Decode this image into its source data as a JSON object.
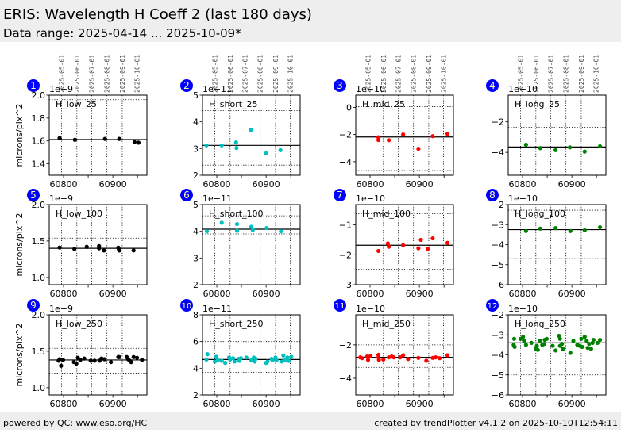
{
  "header": {
    "title": "ERIS: Wavelength H Coeff 2 (last 180 days)",
    "subtitle": "Data range: 2025-04-14 ... 2025-10-09*"
  },
  "footer": {
    "left": "powered by QC: www.eso.org/HC",
    "right": "created by trendPlotter v4.1.2 on 2025-10-10T12:54:11"
  },
  "colors": {
    "low": "#000000",
    "short": "#00bfbf",
    "mid": "#ff0000",
    "long": "#008000",
    "badge": "#0000ff",
    "band": "#eeeeee"
  },
  "chart_data": {
    "type": "scatter",
    "ylabel": "microns/pix^2",
    "xlim": [
      60771,
      60969
    ],
    "xticks": [
      60800,
      60900
    ],
    "xticks_minor": [
      60850,
      60950
    ],
    "date_ticks": [
      {
        "label": "2025-05-01",
        "mjd": 60796
      },
      {
        "label": "2025-06-01",
        "mjd": 60827
      },
      {
        "label": "2025-07-01",
        "mjd": 60857
      },
      {
        "label": "2025-08-01",
        "mjd": 60888
      },
      {
        "label": "2025-09-01",
        "mjd": 60919
      },
      {
        "label": "2025-10-01",
        "mjd": 60949
      }
    ],
    "grid": true,
    "panels": [
      {
        "num": "1",
        "name": "H_low_25",
        "color": "low",
        "exponent": "1e−9",
        "ylim": [
          1.3,
          2.0
        ],
        "yticks": [
          1.4,
          1.6,
          1.8,
          2.0
        ],
        "ytick_labels": [
          "1.4",
          "1.6",
          "1.8",
          "2.0"
        ],
        "median": 1.612,
        "limits": [
          1.96
        ],
        "points": [
          [
            60792,
            1.625
          ],
          [
            60823,
            1.61
          ],
          [
            60884,
            1.618
          ],
          [
            60913,
            1.618
          ],
          [
            60944,
            1.59
          ],
          [
            60952,
            1.585
          ]
        ]
      },
      {
        "num": "2",
        "name": "H_short_25",
        "color": "short",
        "exponent": "1e−11",
        "ylim": [
          2,
          5
        ],
        "yticks": [
          2,
          3,
          4,
          5
        ],
        "ytick_labels": [
          "2",
          "3",
          "4",
          "5"
        ],
        "median": 3.12,
        "limits": [
          4.42,
          2.38
        ],
        "points": [
          [
            60779,
            3.12
          ],
          [
            60810,
            3.12
          ],
          [
            60839,
            3.23
          ],
          [
            60840,
            3.02
          ],
          [
            60869,
            3.7
          ],
          [
            60900,
            2.82
          ],
          [
            60929,
            2.94
          ]
        ]
      },
      {
        "num": "3",
        "name": "H_mid_25",
        "color": "mid",
        "exponent": "1e−10",
        "ylim": [
          -5,
          0.9
        ],
        "yticks": [
          -4,
          -2,
          0
        ],
        "ytick_labels": [
          "−4",
          "−2",
          "0"
        ],
        "median": -2.18,
        "limits": [
          0.05,
          -4.65
        ],
        "points": [
          [
            60817,
            -2.2
          ],
          [
            60817,
            -2.4
          ],
          [
            60838,
            -2.42
          ],
          [
            60867,
            -2.0
          ],
          [
            60898,
            -3.05
          ],
          [
            60927,
            -2.12
          ],
          [
            60957,
            -1.95
          ]
        ]
      },
      {
        "num": "4",
        "name": "H_long_25",
        "color": "long",
        "exponent": "1e−10",
        "ylim": [
          -5.5,
          -0.25
        ],
        "yticks": [
          -4,
          -2
        ],
        "ytick_labels": [
          "−4",
          "−2"
        ],
        "median": -3.65,
        "limits": [
          -2.35,
          -4.95
        ],
        "points": [
          [
            60807,
            -3.5
          ],
          [
            60836,
            -3.72
          ],
          [
            60867,
            -3.85
          ],
          [
            60896,
            -3.67
          ],
          [
            60926,
            -3.95
          ],
          [
            60957,
            -3.6
          ]
        ]
      },
      {
        "num": "5",
        "name": "H_low_100",
        "color": "low",
        "exponent": "1e−9",
        "ylim": [
          0.9,
          2.0
        ],
        "yticks": [
          1.0,
          1.5,
          2.0
        ],
        "ytick_labels": [
          "1.0",
          "1.5",
          "2.0"
        ],
        "median": 1.4,
        "limits": [
          1.54,
          1.21
        ],
        "points": [
          [
            60792,
            1.41
          ],
          [
            60822,
            1.39
          ],
          [
            60847,
            1.42
          ],
          [
            60872,
            1.43
          ],
          [
            60872,
            1.4
          ],
          [
            60882,
            1.37
          ],
          [
            60911,
            1.41
          ],
          [
            60912,
            1.39
          ],
          [
            60913,
            1.37
          ],
          [
            60942,
            1.37
          ]
        ]
      },
      {
        "num": "6",
        "name": "H_short_100",
        "color": "short",
        "exponent": "1e−11",
        "ylim": [
          2,
          5
        ],
        "yticks": [
          2,
          3,
          4,
          5
        ],
        "ytick_labels": [
          "2",
          "3",
          "4",
          "5"
        ],
        "median": 4.08,
        "limits": [
          4.58,
          3.9
        ],
        "points": [
          [
            60780,
            4.0
          ],
          [
            60810,
            4.32
          ],
          [
            60841,
            4.27
          ],
          [
            60841,
            4.02
          ],
          [
            60870,
            4.17
          ],
          [
            60873,
            4.05
          ],
          [
            60901,
            4.12
          ],
          [
            60930,
            4.0
          ]
        ]
      },
      {
        "num": "7",
        "name": "H_mid_100",
        "color": "mid",
        "exponent": "1e−10",
        "ylim": [
          -3,
          -0.32
        ],
        "yticks": [
          -3,
          -2,
          -1
        ],
        "ytick_labels": [
          "−3",
          "−2",
          "−1"
        ],
        "median": -1.68,
        "limits": [
          -0.62,
          -2.48
        ],
        "points": [
          [
            60817,
            -1.87
          ],
          [
            60836,
            -1.62
          ],
          [
            60838,
            -1.73
          ],
          [
            60867,
            -1.68
          ],
          [
            60898,
            -1.78
          ],
          [
            60903,
            -1.5
          ],
          [
            60917,
            -1.8
          ],
          [
            60927,
            -1.45
          ],
          [
            60957,
            -1.6
          ]
        ]
      },
      {
        "num": "8",
        "name": "H_long_100",
        "color": "long",
        "exponent": "1e−10",
        "ylim": [
          -6,
          -2
        ],
        "yticks": [
          -6,
          -5,
          -4,
          -3,
          -2
        ],
        "ytick_labels": [
          "−6",
          "−5",
          "−4",
          "−3",
          "−2"
        ],
        "median": -3.25,
        "limits": [
          -2.28,
          -4.7
        ],
        "points": [
          [
            60807,
            -3.32
          ],
          [
            60836,
            -3.2
          ],
          [
            60867,
            -3.17
          ],
          [
            60897,
            -3.32
          ],
          [
            60926,
            -3.28
          ],
          [
            60957,
            -3.13
          ]
        ]
      },
      {
        "num": "9",
        "name": "H_low_250",
        "color": "low",
        "exponent": "1e−9",
        "ylim": [
          0.9,
          2.0
        ],
        "yticks": [
          1.0,
          1.5,
          2.0
        ],
        "ytick_labels": [
          "1.0",
          "1.5",
          "2.0"
        ],
        "median": 1.38,
        "limits": [
          1.54,
          1.2
        ],
        "points": [
          [
            60790,
            1.37
          ],
          [
            60792,
            1.39
          ],
          [
            60795,
            1.3
          ],
          [
            60799,
            1.38
          ],
          [
            60821,
            1.35
          ],
          [
            60826,
            1.33
          ],
          [
            60829,
            1.41
          ],
          [
            60834,
            1.38
          ],
          [
            60842,
            1.4
          ],
          [
            60855,
            1.37
          ],
          [
            60863,
            1.37
          ],
          [
            60873,
            1.37
          ],
          [
            60877,
            1.4
          ],
          [
            60883,
            1.39
          ],
          [
            60896,
            1.35
          ],
          [
            60911,
            1.42
          ],
          [
            60913,
            1.42
          ],
          [
            60928,
            1.42
          ],
          [
            60931,
            1.39
          ],
          [
            60934,
            1.37
          ],
          [
            60937,
            1.35
          ],
          [
            60942,
            1.42
          ],
          [
            60949,
            1.41
          ],
          [
            60959,
            1.38
          ]
        ]
      },
      {
        "num": "10",
        "name": "H_short_250",
        "color": "short",
        "exponent": "1e−11",
        "ylim": [
          2,
          8
        ],
        "yticks": [
          2,
          4,
          6,
          8
        ],
        "ytick_labels": [
          "2",
          "4",
          "6",
          "8"
        ],
        "median": 4.65,
        "limits": [
          6.0,
          3.7
        ],
        "points": [
          [
            60781,
            5.05
          ],
          [
            60779,
            4.65
          ],
          [
            60796,
            4.5
          ],
          [
            60799,
            4.85
          ],
          [
            60802,
            4.6
          ],
          [
            60810,
            4.55
          ],
          [
            60817,
            4.4
          ],
          [
            60825,
            4.8
          ],
          [
            60827,
            4.65
          ],
          [
            60833,
            4.75
          ],
          [
            60836,
            4.5
          ],
          [
            60844,
            4.7
          ],
          [
            60846,
            4.55
          ],
          [
            60849,
            4.75
          ],
          [
            60860,
            4.8
          ],
          [
            60870,
            4.6
          ],
          [
            60875,
            4.8
          ],
          [
            60877,
            4.5
          ],
          [
            60879,
            4.7
          ],
          [
            60900,
            4.4
          ],
          [
            60903,
            4.5
          ],
          [
            60911,
            4.7
          ],
          [
            60913,
            4.6
          ],
          [
            60919,
            4.8
          ],
          [
            60921,
            4.6
          ],
          [
            60932,
            4.5
          ],
          [
            60935,
            4.95
          ],
          [
            60939,
            4.6
          ],
          [
            60943,
            4.8
          ],
          [
            60946,
            4.55
          ],
          [
            60951,
            4.85
          ]
        ]
      },
      {
        "num": "11",
        "name": "H_mid_250",
        "color": "mid",
        "exponent": "1e−10",
        "ylim": [
          -5,
          -0.2
        ],
        "yticks": [
          -4,
          -2
        ],
        "ytick_labels": [
          "−4",
          "−2"
        ],
        "median": -2.75,
        "limits": [
          -2.0,
          -3.35
        ],
        "points": [
          [
            60780,
            -2.75
          ],
          [
            60784,
            -2.8
          ],
          [
            60794,
            -2.7
          ],
          [
            60796,
            -2.9
          ],
          [
            60801,
            -2.65
          ],
          [
            60817,
            -2.6
          ],
          [
            60817,
            -2.75
          ],
          [
            60818,
            -2.9
          ],
          [
            60827,
            -2.88
          ],
          [
            60838,
            -2.75
          ],
          [
            60844,
            -2.7
          ],
          [
            60848,
            -2.75
          ],
          [
            60861,
            -2.75
          ],
          [
            60867,
            -2.62
          ],
          [
            60877,
            -2.85
          ],
          [
            60898,
            -2.78
          ],
          [
            60914,
            -2.95
          ],
          [
            60927,
            -2.78
          ],
          [
            60933,
            -2.75
          ],
          [
            60941,
            -2.8
          ],
          [
            60957,
            -2.62
          ]
        ]
      },
      {
        "num": "12",
        "name": "H_long_250",
        "color": "long",
        "exponent": "1e−10",
        "ylim": [
          -6,
          -2
        ],
        "yticks": [
          -6,
          -5,
          -4,
          -3,
          -2
        ],
        "ytick_labels": [
          "−6",
          "−5",
          "−4",
          "−3",
          "−2"
        ],
        "median": -3.4,
        "limits": [
          -5.0
        ],
        "points": [
          [
            60782,
            -3.5
          ],
          [
            60783,
            -3.2
          ],
          [
            60784,
            -3.6
          ],
          [
            60796,
            -3.2
          ],
          [
            60801,
            -3.1
          ],
          [
            60803,
            -3.3
          ],
          [
            60807,
            -3.5
          ],
          [
            60818,
            -3.4
          ],
          [
            60827,
            -3.7
          ],
          [
            60829,
            -3.55
          ],
          [
            60831,
            -3.75
          ],
          [
            60835,
            -3.3
          ],
          [
            60840,
            -3.5
          ],
          [
            60844,
            -3.45
          ],
          [
            60845,
            -3.25
          ],
          [
            60849,
            -3.2
          ],
          [
            60861,
            -3.55
          ],
          [
            60867,
            -3.78
          ],
          [
            60874,
            -3.05
          ],
          [
            60876,
            -3.2
          ],
          [
            60876,
            -3.55
          ],
          [
            60880,
            -3.45
          ],
          [
            60882,
            -3.7
          ],
          [
            60897,
            -3.9
          ],
          [
            60903,
            -3.3
          ],
          [
            60911,
            -3.5
          ],
          [
            60916,
            -3.55
          ],
          [
            60919,
            -3.2
          ],
          [
            60921,
            -3.6
          ],
          [
            60926,
            -3.1
          ],
          [
            60930,
            -3.3
          ],
          [
            60932,
            -3.65
          ],
          [
            60935,
            -3.45
          ],
          [
            60939,
            -3.7
          ],
          [
            60942,
            -3.4
          ],
          [
            60944,
            -3.25
          ],
          [
            60952,
            -3.4
          ],
          [
            60957,
            -3.25
          ]
        ]
      }
    ]
  }
}
